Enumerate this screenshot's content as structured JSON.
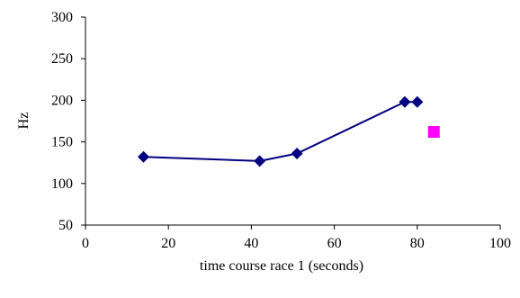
{
  "chart_data": {
    "type": "scatter",
    "title": "",
    "xlabel": "time course race 1 (seconds)",
    "ylabel": "Hz",
    "xlim": [
      0,
      100
    ],
    "ylim": [
      50,
      300
    ],
    "xticks": [
      0,
      20,
      40,
      60,
      80,
      100
    ],
    "yticks": [
      50,
      100,
      150,
      200,
      250,
      300
    ],
    "grid": false,
    "legend": "none",
    "series": [
      {
        "style": "line-with-diamond-markers",
        "color": "#000080",
        "points": [
          {
            "x": 14,
            "y": 132
          },
          {
            "x": 42,
            "y": 127
          },
          {
            "x": 51,
            "y": 136
          },
          {
            "x": 77,
            "y": 198
          },
          {
            "x": 80,
            "y": 198
          }
        ]
      },
      {
        "style": "square-marker",
        "color": "#ff00ff",
        "points": [
          {
            "x": 84,
            "y": 162
          }
        ]
      }
    ]
  }
}
